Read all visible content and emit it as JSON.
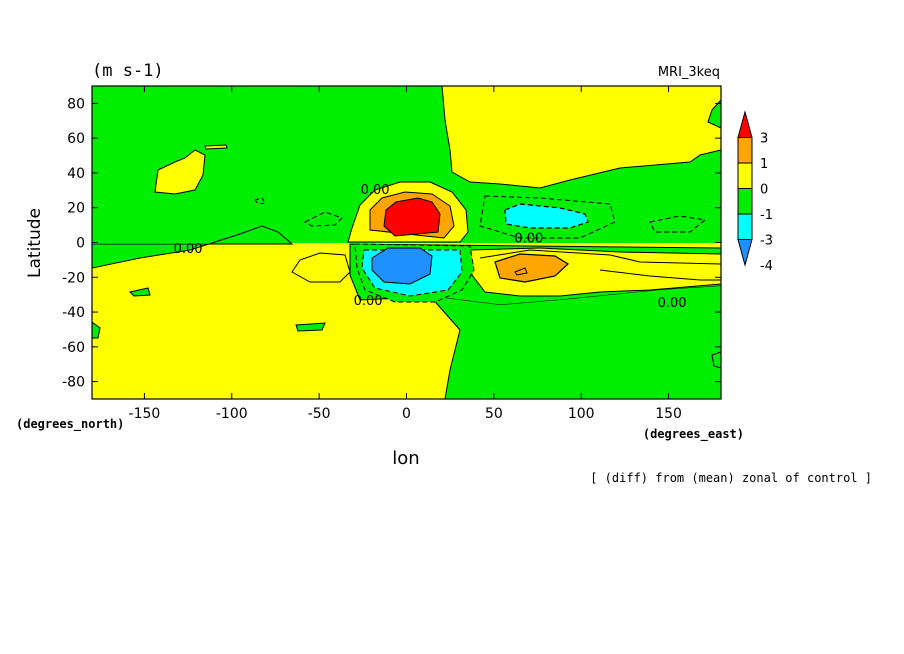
{
  "chart_data": {
    "type": "heatmap",
    "units_label": "(m s-1)",
    "model_label": "MRI_3keq",
    "xlabel": "lon",
    "ylabel": "Latitude",
    "x_unit_label": "(degrees_east)",
    "y_unit_label": "(degrees_north)",
    "footnote": "[ (diff) from (mean) zonal of control ]",
    "xlim": [
      -180,
      180
    ],
    "ylim": [
      -90,
      90
    ],
    "x_ticks": [
      {
        "value": -150,
        "label": "-150"
      },
      {
        "value": -100,
        "label": "-100"
      },
      {
        "value": -50,
        "label": "-50"
      },
      {
        "value": 0,
        "label": "0"
      },
      {
        "value": 50,
        "label": "50"
      },
      {
        "value": 100,
        "label": "100"
      },
      {
        "value": 150,
        "label": "150"
      }
    ],
    "y_ticks": [
      {
        "value": 80,
        "label": "80"
      },
      {
        "value": 60,
        "label": "60"
      },
      {
        "value": 40,
        "label": "40"
      },
      {
        "value": 20,
        "label": "20"
      },
      {
        "value": 0,
        "label": "0"
      },
      {
        "value": -20,
        "label": "-20"
      },
      {
        "value": -40,
        "label": "-40"
      },
      {
        "value": -60,
        "label": "-60"
      },
      {
        "value": -80,
        "label": "-80"
      }
    ],
    "colorbar": {
      "levels": [
        "3",
        "1",
        "0",
        "-1",
        "-3",
        "-4"
      ],
      "colors": [
        "#ff0000",
        "#ffa500",
        "#ffff00",
        "#00ee00",
        "#00ffff",
        "#1e90ff"
      ]
    },
    "contour_labels": [
      {
        "text": "0.00",
        "lon": -18,
        "lat": 28
      },
      {
        "text": "0.00",
        "lon": -125,
        "lat": -6
      },
      {
        "text": "0.00",
        "lon": 70,
        "lat": 0
      },
      {
        "text": "0.00",
        "lon": -22,
        "lat": -36
      },
      {
        "text": "0.00",
        "lon": 152,
        "lat": -37
      }
    ],
    "colors": {
      "positive_0_1": "#ffff00",
      "negative_0_1": "#00ee00",
      "positive_1_3": "#ffa500",
      "positive_3_plus": "#ff0000",
      "negative_1_3": "#00ffff",
      "negative_3_4": "#1e90ff"
    }
  }
}
